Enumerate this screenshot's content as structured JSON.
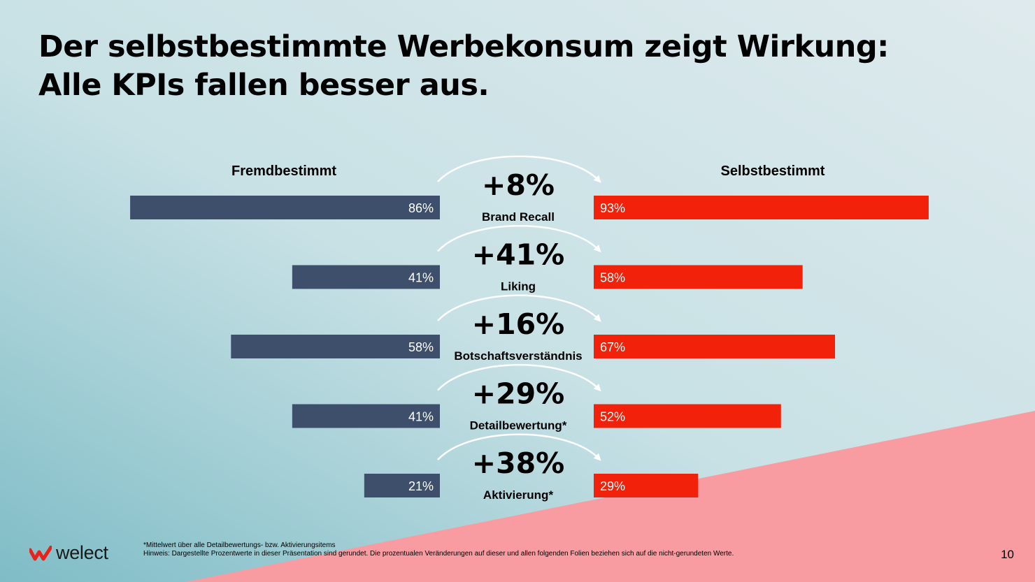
{
  "title": {
    "line1": "Der selbstbestimmte Werbekonsum zeigt Wirkung:",
    "line2": "Alle KPIs fallen besser aus."
  },
  "colors": {
    "left_bar": "#3e4f6b",
    "right_bar": "#f2220a",
    "bg_top_left": "#a9d2d7",
    "bg_right": "#dce9ec",
    "bg_pink": "#f99ca1"
  },
  "chart_data": {
    "type": "bar",
    "layout": "back-to-back",
    "xlim": [
      0,
      100
    ],
    "series": [
      {
        "name": "Fremdbestimmt",
        "values": [
          86,
          41,
          58,
          41,
          21
        ],
        "labels": [
          "86%",
          "41%",
          "58%",
          "41%",
          "21%"
        ]
      },
      {
        "name": "Selbstbestimmt",
        "values": [
          93,
          58,
          67,
          52,
          29
        ],
        "labels": [
          "93%",
          "58%",
          "67%",
          "52%",
          "29%"
        ]
      }
    ],
    "categories": [
      "Brand Recall",
      "Liking",
      "Botschaftsverständnis",
      "Detailbewertung*",
      "Aktivierung*"
    ],
    "changes": [
      "+8%",
      "+41%",
      "+16%",
      "+29%",
      "+38%"
    ],
    "arrow_icon": "curved-arrow-icon"
  },
  "footnote": {
    "line1": "*Mittelwert über alle Detailbewertungs- bzw. Aktivierungsitems",
    "line2": "Hinweis: Dargestellte Prozentwerte in dieser Präsentation sind gerundet. Die prozentualen Veränderungen auf dieser und allen folgenden Folien beziehen sich auf die nicht-gerundeten Werte."
  },
  "logo": {
    "text": "welect",
    "icon": "welect-logo-icon"
  },
  "page_number": "10"
}
